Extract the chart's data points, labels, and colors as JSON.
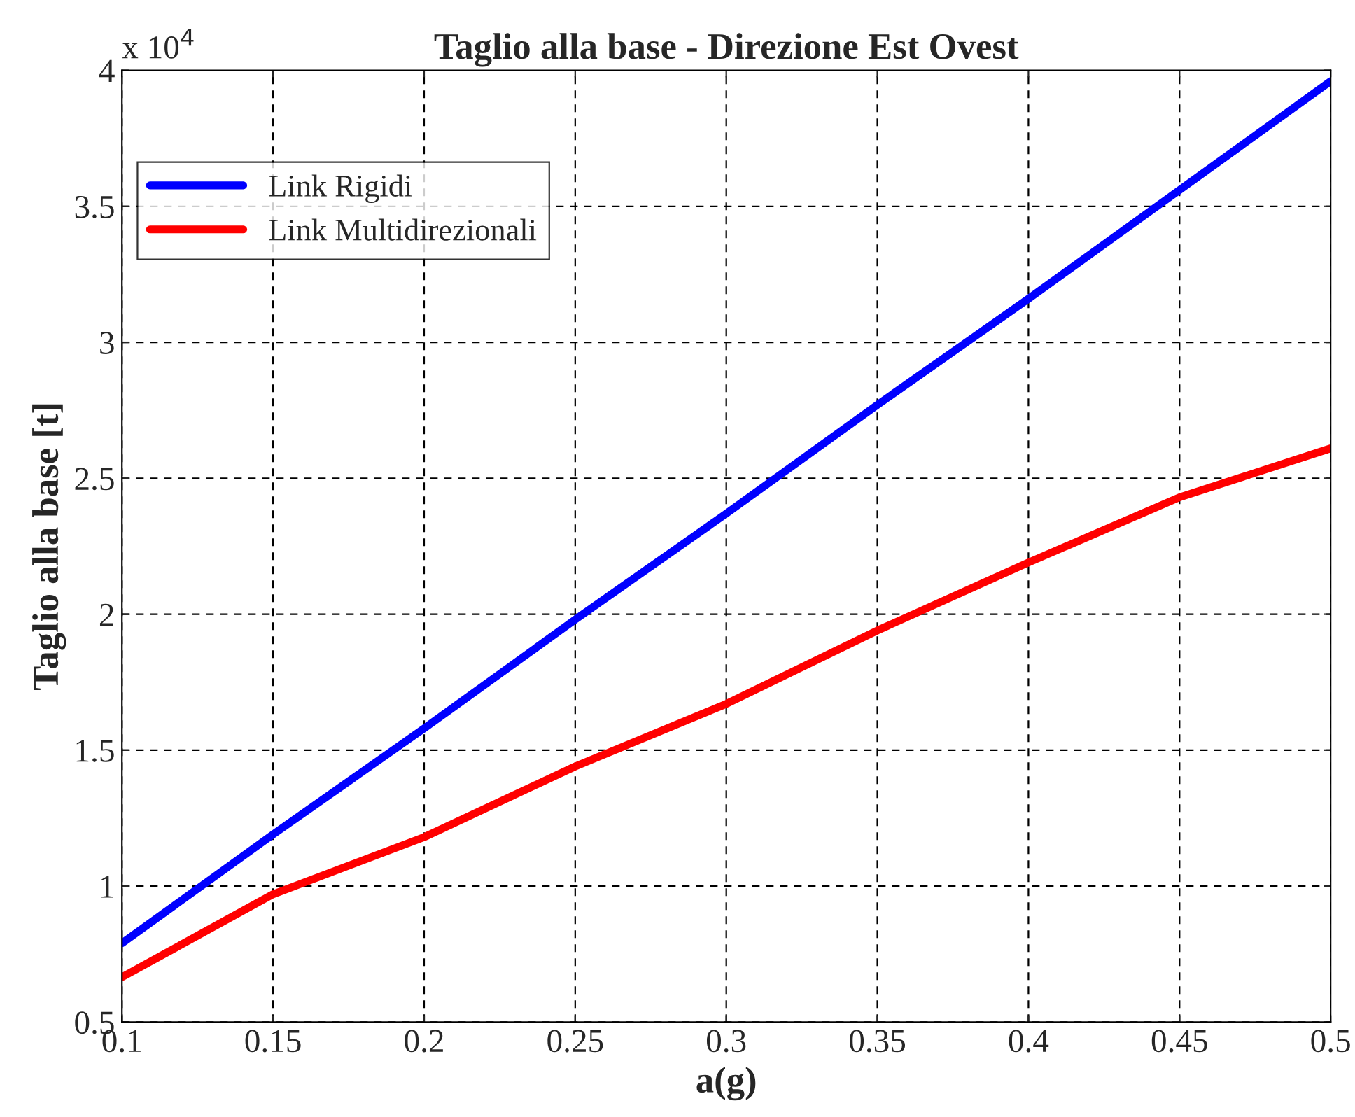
{
  "chart_data": {
    "type": "line",
    "title": "Taglio alla base - Direzione Est Ovest",
    "xlabel": "a(g)",
    "ylabel": "Taglio alla base [t]",
    "annotations": [
      "x 10$^{4}$"
    ],
    "x": [
      0.1,
      0.15,
      0.2,
      0.25,
      0.3,
      0.35,
      0.4,
      0.45,
      0.5
    ],
    "series": [
      {
        "name": "Link Rigidi",
        "color": "#0000ff",
        "values": [
          0.79,
          1.19,
          1.58,
          1.98,
          2.37,
          2.77,
          3.16,
          3.56,
          3.96
        ]
      },
      {
        "name": "Link Multidirezionali",
        "color": "#ff0000",
        "values": [
          0.665,
          0.97,
          1.18,
          1.44,
          1.67,
          1.94,
          2.19,
          2.43,
          2.61
        ]
      }
    ],
    "xlim": [
      0.1,
      0.5
    ],
    "xticks": [
      0.1,
      0.15,
      0.2,
      0.25,
      0.3,
      0.35,
      0.4,
      0.45,
      0.5
    ],
    "ylim": [
      0.5,
      4
    ],
    "yticks": [
      0.5,
      1,
      1.5,
      2,
      2.5,
      3,
      3.5,
      4
    ],
    "grid": true,
    "legend": "top left",
    "marker": "none",
    "line_style": "solid"
  }
}
